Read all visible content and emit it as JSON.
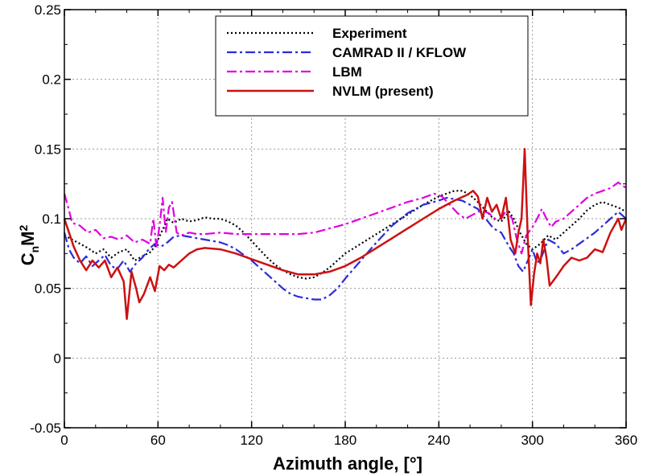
{
  "chart_data": {
    "type": "line",
    "xlabel": "Azimuth angle, [°]",
    "ylabel_main": "C",
    "ylabel_sub1": "n",
    "ylabel_main2": "M",
    "ylabel_sup": "2",
    "xlim": [
      0,
      360
    ],
    "ylim": [
      -0.05,
      0.25
    ],
    "xticks": [
      0,
      60,
      120,
      180,
      240,
      300,
      360
    ],
    "xtick_labels": [
      "0",
      "60",
      "120",
      "180",
      "240",
      "300",
      "360"
    ],
    "yticks": [
      -0.05,
      0,
      0.05,
      0.1,
      0.15,
      0.2,
      0.25
    ],
    "ytick_labels": [
      "-0.05",
      "0",
      "0.05",
      "0.1",
      "0.15",
      "0.2",
      "0.25"
    ],
    "grid": true,
    "legend_position": "top-right",
    "series": [
      {
        "name": "Experiment",
        "color": "#000000",
        "style": "dotted",
        "points": [
          [
            0,
            0.088
          ],
          [
            5,
            0.085
          ],
          [
            10,
            0.082
          ],
          [
            15,
            0.079
          ],
          [
            20,
            0.075
          ],
          [
            25,
            0.078
          ],
          [
            30,
            0.072
          ],
          [
            35,
            0.076
          ],
          [
            40,
            0.078
          ],
          [
            45,
            0.07
          ],
          [
            50,
            0.073
          ],
          [
            55,
            0.076
          ],
          [
            58,
            0.08
          ],
          [
            60,
            0.085
          ],
          [
            63,
            0.092
          ],
          [
            66,
            0.1
          ],
          [
            70,
            0.097
          ],
          [
            75,
            0.1
          ],
          [
            80,
            0.098
          ],
          [
            85,
            0.099
          ],
          [
            90,
            0.101
          ],
          [
            95,
            0.1
          ],
          [
            100,
            0.1
          ],
          [
            105,
            0.098
          ],
          [
            110,
            0.095
          ],
          [
            115,
            0.09
          ],
          [
            120,
            0.084
          ],
          [
            125,
            0.078
          ],
          [
            130,
            0.072
          ],
          [
            135,
            0.067
          ],
          [
            140,
            0.063
          ],
          [
            145,
            0.06
          ],
          [
            150,
            0.058
          ],
          [
            155,
            0.057
          ],
          [
            160,
            0.058
          ],
          [
            165,
            0.061
          ],
          [
            170,
            0.065
          ],
          [
            175,
            0.07
          ],
          [
            180,
            0.075
          ],
          [
            190,
            0.082
          ],
          [
            200,
            0.089
          ],
          [
            210,
            0.096
          ],
          [
            220,
            0.103
          ],
          [
            230,
            0.11
          ],
          [
            240,
            0.116
          ],
          [
            245,
            0.118
          ],
          [
            250,
            0.12
          ],
          [
            255,
            0.12
          ],
          [
            260,
            0.117
          ],
          [
            265,
            0.112
          ],
          [
            270,
            0.106
          ],
          [
            275,
            0.1
          ],
          [
            280,
            0.098
          ],
          [
            285,
            0.105
          ],
          [
            288,
            0.1
          ],
          [
            292,
            0.09
          ],
          [
            296,
            0.082
          ],
          [
            300,
            0.078
          ],
          [
            305,
            0.082
          ],
          [
            310,
            0.088
          ],
          [
            315,
            0.085
          ],
          [
            320,
            0.09
          ],
          [
            325,
            0.095
          ],
          [
            330,
            0.1
          ],
          [
            335,
            0.106
          ],
          [
            340,
            0.11
          ],
          [
            345,
            0.112
          ],
          [
            350,
            0.11
          ],
          [
            355,
            0.108
          ],
          [
            360,
            0.105
          ]
        ]
      },
      {
        "name": "CAMRAD II / KFLOW",
        "color": "#2b2bdc",
        "style": "dashdot",
        "points": [
          [
            0,
            0.09
          ],
          [
            3,
            0.078
          ],
          [
            6,
            0.072
          ],
          [
            10,
            0.068
          ],
          [
            14,
            0.073
          ],
          [
            18,
            0.066
          ],
          [
            22,
            0.07
          ],
          [
            26,
            0.074
          ],
          [
            30,
            0.066
          ],
          [
            34,
            0.064
          ],
          [
            38,
            0.07
          ],
          [
            42,
            0.062
          ],
          [
            46,
            0.068
          ],
          [
            50,
            0.072
          ],
          [
            54,
            0.078
          ],
          [
            58,
            0.082
          ],
          [
            62,
            0.08
          ],
          [
            66,
            0.083
          ],
          [
            70,
            0.087
          ],
          [
            75,
            0.088
          ],
          [
            80,
            0.087
          ],
          [
            85,
            0.086
          ],
          [
            90,
            0.085
          ],
          [
            95,
            0.084
          ],
          [
            100,
            0.083
          ],
          [
            105,
            0.081
          ],
          [
            110,
            0.078
          ],
          [
            115,
            0.074
          ],
          [
            120,
            0.07
          ],
          [
            125,
            0.065
          ],
          [
            130,
            0.06
          ],
          [
            135,
            0.055
          ],
          [
            140,
            0.05
          ],
          [
            145,
            0.046
          ],
          [
            150,
            0.044
          ],
          [
            155,
            0.043
          ],
          [
            160,
            0.042
          ],
          [
            165,
            0.042
          ],
          [
            170,
            0.045
          ],
          [
            175,
            0.05
          ],
          [
            180,
            0.057
          ],
          [
            190,
            0.07
          ],
          [
            200,
            0.083
          ],
          [
            210,
            0.095
          ],
          [
            220,
            0.104
          ],
          [
            230,
            0.11
          ],
          [
            240,
            0.113
          ],
          [
            245,
            0.115
          ],
          [
            250,
            0.114
          ],
          [
            255,
            0.113
          ],
          [
            260,
            0.11
          ],
          [
            265,
            0.107
          ],
          [
            270,
            0.1
          ],
          [
            275,
            0.093
          ],
          [
            280,
            0.09
          ],
          [
            285,
            0.08
          ],
          [
            288,
            0.075
          ],
          [
            291,
            0.066
          ],
          [
            294,
            0.062
          ],
          [
            297,
            0.07
          ],
          [
            300,
            0.078
          ],
          [
            303,
            0.068
          ],
          [
            306,
            0.073
          ],
          [
            310,
            0.085
          ],
          [
            315,
            0.082
          ],
          [
            320,
            0.075
          ],
          [
            325,
            0.078
          ],
          [
            330,
            0.082
          ],
          [
            335,
            0.086
          ],
          [
            340,
            0.09
          ],
          [
            345,
            0.095
          ],
          [
            350,
            0.1
          ],
          [
            355,
            0.105
          ],
          [
            360,
            0.1
          ]
        ]
      },
      {
        "name": "LBM",
        "color": "#e000e0",
        "style": "dashdot",
        "points": [
          [
            0,
            0.118
          ],
          [
            2,
            0.11
          ],
          [
            5,
            0.097
          ],
          [
            10,
            0.095
          ],
          [
            15,
            0.09
          ],
          [
            20,
            0.092
          ],
          [
            25,
            0.086
          ],
          [
            30,
            0.087
          ],
          [
            35,
            0.085
          ],
          [
            40,
            0.088
          ],
          [
            45,
            0.083
          ],
          [
            50,
            0.085
          ],
          [
            55,
            0.082
          ],
          [
            57,
            0.1
          ],
          [
            59,
            0.08
          ],
          [
            61,
            0.095
          ],
          [
            63,
            0.115
          ],
          [
            65,
            0.09
          ],
          [
            67,
            0.108
          ],
          [
            69,
            0.112
          ],
          [
            72,
            0.09
          ],
          [
            75,
            0.088
          ],
          [
            80,
            0.09
          ],
          [
            85,
            0.089
          ],
          [
            90,
            0.089
          ],
          [
            100,
            0.09
          ],
          [
            110,
            0.089
          ],
          [
            120,
            0.089
          ],
          [
            130,
            0.089
          ],
          [
            140,
            0.089
          ],
          [
            150,
            0.089
          ],
          [
            160,
            0.09
          ],
          [
            170,
            0.093
          ],
          [
            180,
            0.096
          ],
          [
            190,
            0.1
          ],
          [
            200,
            0.104
          ],
          [
            210,
            0.108
          ],
          [
            220,
            0.112
          ],
          [
            230,
            0.115
          ],
          [
            237,
            0.118
          ],
          [
            242,
            0.116
          ],
          [
            247,
            0.11
          ],
          [
            252,
            0.104
          ],
          [
            257,
            0.1
          ],
          [
            262,
            0.103
          ],
          [
            267,
            0.106
          ],
          [
            272,
            0.104
          ],
          [
            276,
            0.1
          ],
          [
            280,
            0.1
          ],
          [
            283,
            0.106
          ],
          [
            287,
            0.1
          ],
          [
            290,
            0.085
          ],
          [
            293,
            0.075
          ],
          [
            296,
            0.088
          ],
          [
            300,
            0.094
          ],
          [
            303,
            0.1
          ],
          [
            306,
            0.107
          ],
          [
            309,
            0.1
          ],
          [
            312,
            0.094
          ],
          [
            315,
            0.098
          ],
          [
            320,
            0.1
          ],
          [
            325,
            0.105
          ],
          [
            330,
            0.11
          ],
          [
            335,
            0.115
          ],
          [
            340,
            0.118
          ],
          [
            345,
            0.12
          ],
          [
            350,
            0.122
          ],
          [
            355,
            0.126
          ],
          [
            360,
            0.122
          ]
        ]
      },
      {
        "name": "NVLM (present)",
        "color": "#cc1111",
        "style": "solid",
        "points": [
          [
            0,
            0.1
          ],
          [
            3,
            0.09
          ],
          [
            6,
            0.08
          ],
          [
            10,
            0.07
          ],
          [
            14,
            0.063
          ],
          [
            18,
            0.07
          ],
          [
            22,
            0.065
          ],
          [
            26,
            0.07
          ],
          [
            30,
            0.058
          ],
          [
            34,
            0.065
          ],
          [
            38,
            0.055
          ],
          [
            40,
            0.028
          ],
          [
            43,
            0.062
          ],
          [
            46,
            0.05
          ],
          [
            48,
            0.04
          ],
          [
            51,
            0.046
          ],
          [
            55,
            0.058
          ],
          [
            58,
            0.048
          ],
          [
            61,
            0.066
          ],
          [
            64,
            0.063
          ],
          [
            67,
            0.067
          ],
          [
            70,
            0.065
          ],
          [
            75,
            0.07
          ],
          [
            80,
            0.075
          ],
          [
            85,
            0.078
          ],
          [
            90,
            0.079
          ],
          [
            100,
            0.078
          ],
          [
            110,
            0.075
          ],
          [
            120,
            0.071
          ],
          [
            130,
            0.067
          ],
          [
            140,
            0.063
          ],
          [
            150,
            0.06
          ],
          [
            160,
            0.06
          ],
          [
            170,
            0.062
          ],
          [
            180,
            0.066
          ],
          [
            190,
            0.072
          ],
          [
            200,
            0.079
          ],
          [
            210,
            0.086
          ],
          [
            220,
            0.093
          ],
          [
            230,
            0.1
          ],
          [
            240,
            0.107
          ],
          [
            250,
            0.113
          ],
          [
            258,
            0.117
          ],
          [
            262,
            0.12
          ],
          [
            265,
            0.116
          ],
          [
            268,
            0.1
          ],
          [
            271,
            0.115
          ],
          [
            274,
            0.105
          ],
          [
            277,
            0.11
          ],
          [
            280,
            0.1
          ],
          [
            283,
            0.115
          ],
          [
            286,
            0.085
          ],
          [
            289,
            0.075
          ],
          [
            291,
            0.09
          ],
          [
            293,
            0.1
          ],
          [
            295,
            0.15
          ],
          [
            297,
            0.085
          ],
          [
            299,
            0.038
          ],
          [
            301,
            0.06
          ],
          [
            303,
            0.075
          ],
          [
            305,
            0.068
          ],
          [
            307,
            0.085
          ],
          [
            309,
            0.072
          ],
          [
            311,
            0.052
          ],
          [
            315,
            0.058
          ],
          [
            320,
            0.066
          ],
          [
            325,
            0.072
          ],
          [
            330,
            0.07
          ],
          [
            335,
            0.072
          ],
          [
            340,
            0.078
          ],
          [
            345,
            0.076
          ],
          [
            350,
            0.09
          ],
          [
            355,
            0.1
          ],
          [
            357,
            0.092
          ],
          [
            360,
            0.1
          ]
        ]
      }
    ]
  }
}
